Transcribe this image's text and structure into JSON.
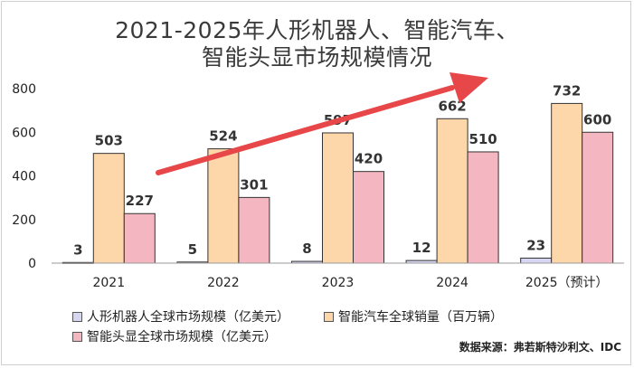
{
  "chart_data": {
    "type": "bar",
    "title": [
      "2021-2025年人形机器人、智能汽车、",
      "智能头显市场规模情况"
    ],
    "categories": [
      "2021",
      "2022",
      "2023",
      "2024",
      "2025（预计）"
    ],
    "series": [
      {
        "name": "人形机器人全球市场规模（亿美元）",
        "values": [
          3,
          5,
          8,
          12,
          23
        ],
        "color": "#d7d6f2"
      },
      {
        "name": "智能汽车全球销量（百万辆）",
        "values": [
          503,
          524,
          597,
          662,
          732
        ],
        "color": "#fdd7aa"
      },
      {
        "name": "智能头显全球市场规模（亿美元）",
        "values": [
          227,
          301,
          420,
          510,
          600
        ],
        "color": "#f4b7c1"
      }
    ],
    "ylim": [
      0,
      800
    ],
    "yticks": [
      0,
      200,
      400,
      600,
      800
    ],
    "xlabel": "",
    "ylabel": "",
    "annotation": "trend-arrow",
    "arrow_color": "#e8474a"
  },
  "source": "数据来源：弗若斯特沙利文、IDC"
}
